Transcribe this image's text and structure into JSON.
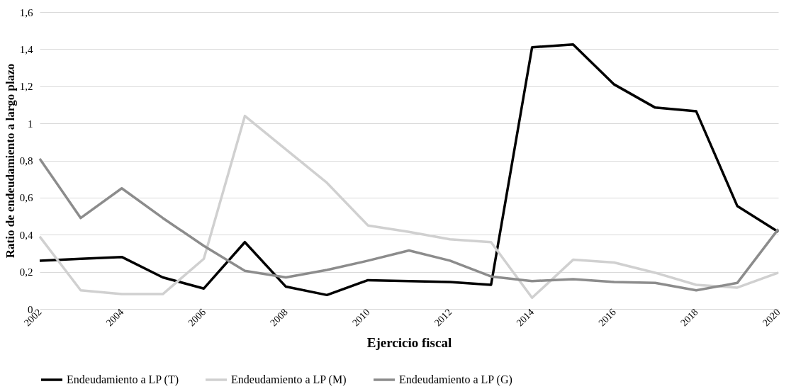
{
  "chart_data": {
    "type": "line",
    "xlabel": "Ejercicio fiscal",
    "ylabel": "Ratio de endeudamiento a largo plazo",
    "categories": [
      "2002",
      null,
      "2004",
      null,
      "2006",
      null,
      "2008",
      null,
      "2010",
      null,
      "2012",
      null,
      "2014",
      null,
      "2016",
      null,
      "2018",
      null,
      "2020"
    ],
    "series": [
      {
        "name": "Endeudamiento a LP (T)",
        "color": "#000000",
        "values": [
          0.26,
          0.27,
          0.28,
          0.17,
          0.11,
          0.36,
          0.12,
          0.075,
          0.155,
          0.15,
          0.145,
          0.13,
          1.41,
          1.425,
          1.21,
          1.085,
          1.065,
          0.555,
          0.415
        ]
      },
      {
        "name": "Endeudamiento a LP (M)",
        "color": "#d0d0d0",
        "values": [
          0.39,
          0.1,
          0.08,
          0.08,
          0.27,
          1.04,
          0.86,
          0.68,
          0.45,
          0.415,
          0.375,
          0.36,
          0.06,
          0.265,
          0.25,
          0.195,
          0.13,
          0.115,
          0.195
        ]
      },
      {
        "name": "Endeudamiento a LP (G)",
        "color": "#8c8c8c",
        "values": [
          0.81,
          0.49,
          0.65,
          0.49,
          0.34,
          0.205,
          0.17,
          0.21,
          0.26,
          0.315,
          0.26,
          0.175,
          0.15,
          0.16,
          0.145,
          0.14,
          0.1,
          0.14,
          0.43
        ]
      }
    ],
    "ylim": [
      0,
      1.6
    ],
    "yticks": [
      0,
      {
        "value": 0.2,
        "label": "0,2"
      },
      {
        "value": 0.4,
        "label": "0,4"
      },
      {
        "value": 0.6,
        "label": "0,6"
      },
      {
        "value": 0.8,
        "label": "0,8"
      },
      1,
      {
        "value": 1.2,
        "label": "1,2"
      },
      {
        "value": 1.4,
        "label": "1,4"
      },
      {
        "value": 1.6,
        "label": "1,6"
      }
    ],
    "grid": "y",
    "legend": "bottom",
    "marker": "none",
    "line_style": "solid"
  }
}
